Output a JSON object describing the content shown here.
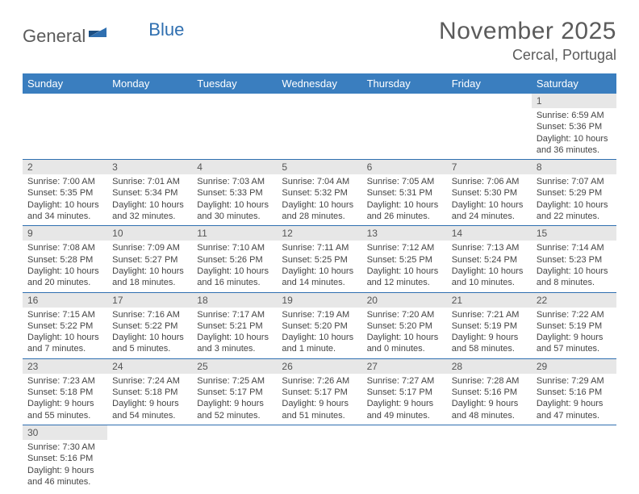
{
  "logo": {
    "text1": "General",
    "text2": "Blue"
  },
  "title": "November 2025",
  "location": "Cercal, Portugal",
  "colors": {
    "header_bg": "#3a7ebf",
    "border": "#2f6fb0",
    "daynum_bg": "#e7e7e7",
    "text": "#444444"
  },
  "weekdays": [
    "Sunday",
    "Monday",
    "Tuesday",
    "Wednesday",
    "Thursday",
    "Friday",
    "Saturday"
  ],
  "weeks": [
    [
      null,
      null,
      null,
      null,
      null,
      null,
      {
        "n": "1",
        "sr": "6:59 AM",
        "ss": "5:36 PM",
        "dl": "10 hours and 36 minutes."
      }
    ],
    [
      {
        "n": "2",
        "sr": "7:00 AM",
        "ss": "5:35 PM",
        "dl": "10 hours and 34 minutes."
      },
      {
        "n": "3",
        "sr": "7:01 AM",
        "ss": "5:34 PM",
        "dl": "10 hours and 32 minutes."
      },
      {
        "n": "4",
        "sr": "7:03 AM",
        "ss": "5:33 PM",
        "dl": "10 hours and 30 minutes."
      },
      {
        "n": "5",
        "sr": "7:04 AM",
        "ss": "5:32 PM",
        "dl": "10 hours and 28 minutes."
      },
      {
        "n": "6",
        "sr": "7:05 AM",
        "ss": "5:31 PM",
        "dl": "10 hours and 26 minutes."
      },
      {
        "n": "7",
        "sr": "7:06 AM",
        "ss": "5:30 PM",
        "dl": "10 hours and 24 minutes."
      },
      {
        "n": "8",
        "sr": "7:07 AM",
        "ss": "5:29 PM",
        "dl": "10 hours and 22 minutes."
      }
    ],
    [
      {
        "n": "9",
        "sr": "7:08 AM",
        "ss": "5:28 PM",
        "dl": "10 hours and 20 minutes."
      },
      {
        "n": "10",
        "sr": "7:09 AM",
        "ss": "5:27 PM",
        "dl": "10 hours and 18 minutes."
      },
      {
        "n": "11",
        "sr": "7:10 AM",
        "ss": "5:26 PM",
        "dl": "10 hours and 16 minutes."
      },
      {
        "n": "12",
        "sr": "7:11 AM",
        "ss": "5:25 PM",
        "dl": "10 hours and 14 minutes."
      },
      {
        "n": "13",
        "sr": "7:12 AM",
        "ss": "5:25 PM",
        "dl": "10 hours and 12 minutes."
      },
      {
        "n": "14",
        "sr": "7:13 AM",
        "ss": "5:24 PM",
        "dl": "10 hours and 10 minutes."
      },
      {
        "n": "15",
        "sr": "7:14 AM",
        "ss": "5:23 PM",
        "dl": "10 hours and 8 minutes."
      }
    ],
    [
      {
        "n": "16",
        "sr": "7:15 AM",
        "ss": "5:22 PM",
        "dl": "10 hours and 7 minutes."
      },
      {
        "n": "17",
        "sr": "7:16 AM",
        "ss": "5:22 PM",
        "dl": "10 hours and 5 minutes."
      },
      {
        "n": "18",
        "sr": "7:17 AM",
        "ss": "5:21 PM",
        "dl": "10 hours and 3 minutes."
      },
      {
        "n": "19",
        "sr": "7:19 AM",
        "ss": "5:20 PM",
        "dl": "10 hours and 1 minute."
      },
      {
        "n": "20",
        "sr": "7:20 AM",
        "ss": "5:20 PM",
        "dl": "10 hours and 0 minutes."
      },
      {
        "n": "21",
        "sr": "7:21 AM",
        "ss": "5:19 PM",
        "dl": "9 hours and 58 minutes."
      },
      {
        "n": "22",
        "sr": "7:22 AM",
        "ss": "5:19 PM",
        "dl": "9 hours and 57 minutes."
      }
    ],
    [
      {
        "n": "23",
        "sr": "7:23 AM",
        "ss": "5:18 PM",
        "dl": "9 hours and 55 minutes."
      },
      {
        "n": "24",
        "sr": "7:24 AM",
        "ss": "5:18 PM",
        "dl": "9 hours and 54 minutes."
      },
      {
        "n": "25",
        "sr": "7:25 AM",
        "ss": "5:17 PM",
        "dl": "9 hours and 52 minutes."
      },
      {
        "n": "26",
        "sr": "7:26 AM",
        "ss": "5:17 PM",
        "dl": "9 hours and 51 minutes."
      },
      {
        "n": "27",
        "sr": "7:27 AM",
        "ss": "5:17 PM",
        "dl": "9 hours and 49 minutes."
      },
      {
        "n": "28",
        "sr": "7:28 AM",
        "ss": "5:16 PM",
        "dl": "9 hours and 48 minutes."
      },
      {
        "n": "29",
        "sr": "7:29 AM",
        "ss": "5:16 PM",
        "dl": "9 hours and 47 minutes."
      }
    ],
    [
      {
        "n": "30",
        "sr": "7:30 AM",
        "ss": "5:16 PM",
        "dl": "9 hours and 46 minutes."
      },
      null,
      null,
      null,
      null,
      null,
      null
    ]
  ],
  "labels": {
    "sunrise": "Sunrise:",
    "sunset": "Sunset:",
    "daylight": "Daylight:"
  }
}
